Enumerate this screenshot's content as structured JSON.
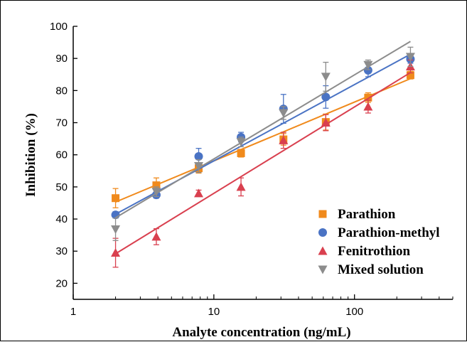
{
  "chart_data": {
    "type": "scatter",
    "xlabel": "Analyte concentration (ng/mL)",
    "ylabel": "Inhibition (%)",
    "x_scale": "log",
    "xlim": [
      1,
      500
    ],
    "ylim": [
      15,
      100
    ],
    "x_ticks": [
      1,
      10,
      100
    ],
    "x_tick_labels": [
      "1",
      "10",
      "100"
    ],
    "y_ticks": [
      20,
      30,
      40,
      50,
      60,
      70,
      80,
      90,
      100
    ],
    "y_tick_labels": [
      "20",
      "30",
      "40",
      "50",
      "60",
      "70",
      "80",
      "90",
      "100"
    ],
    "grid": false,
    "legend_position": "bottom-right",
    "series": [
      {
        "name": "Parathion",
        "marker": "square",
        "color": "#f08a1c",
        "x": [
          2,
          3.9,
          7.8,
          15.6,
          31.25,
          62.5,
          125,
          250
        ],
        "y": [
          46.5,
          50.5,
          55.8,
          60.5,
          64.8,
          70.2,
          77.8,
          84.8
        ],
        "error": [
          3.0,
          2.3,
          1.5,
          1.2,
          1.8,
          2.5,
          1.5,
          1.2
        ],
        "fit": [
          45.3,
          83.7
        ]
      },
      {
        "name": "Parathion-methyl",
        "marker": "circle",
        "color": "#4a73c4",
        "x": [
          2,
          3.9,
          7.8,
          15.6,
          31.25,
          62.5,
          125,
          250
        ],
        "y": [
          41.3,
          47.5,
          59.5,
          65.5,
          74.3,
          78.0,
          86.3,
          89.8
        ],
        "error": [
          1.0,
          1.0,
          2.5,
          1.5,
          4.5,
          3.5,
          2.0,
          1.3
        ],
        "fit": [
          41.5,
          91.3
        ]
      },
      {
        "name": "Fenitrothion",
        "marker": "triangle-up",
        "color": "#d9404f",
        "x": [
          2,
          3.9,
          7.8,
          15.6,
          31.25,
          62.5,
          125,
          250
        ],
        "y": [
          29.5,
          34.5,
          48.0,
          50.0,
          64.5,
          70.0,
          75.0,
          87.5
        ],
        "error": [
          4.5,
          2.5,
          1.0,
          2.8,
          2.5,
          2.5,
          2.0,
          2.0
        ],
        "fit": [
          29.2,
          85.6
        ]
      },
      {
        "name": "Mixed solution",
        "marker": "triangle-down",
        "color": "#8c8c8c",
        "x": [
          2,
          3.9,
          7.8,
          15.6,
          31.25,
          62.5,
          125,
          250
        ],
        "y": [
          36.8,
          48.5,
          56.5,
          64.0,
          73.0,
          84.3,
          88.0,
          90.5
        ],
        "error": [
          3.5,
          1.5,
          2.0,
          1.5,
          2.0,
          4.5,
          1.5,
          3.0
        ],
        "fit": [
          40.4,
          95.3
        ]
      }
    ]
  }
}
